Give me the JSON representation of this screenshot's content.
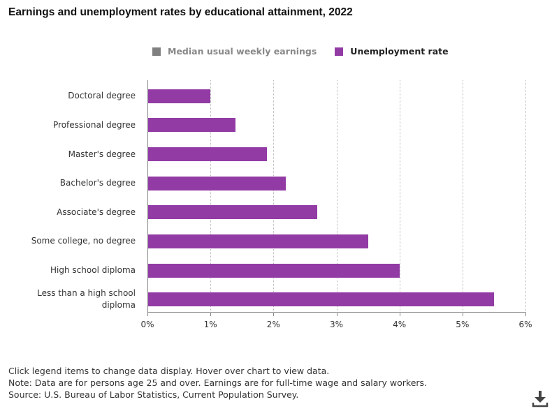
{
  "title": "Earnings and unemployment rates by educational attainment, 2022",
  "legend": [
    {
      "label": "Median usual weekly earnings",
      "color": "#808080",
      "active": false
    },
    {
      "label": "Unemployment rate",
      "color": "#923BA5",
      "active": true
    }
  ],
  "x_ticks": [
    "0%",
    "1%",
    "2%",
    "3%",
    "4%",
    "5%",
    "6%"
  ],
  "categories": [
    "Doctoral degree",
    "Professional degree",
    "Master's degree",
    "Bachelor's degree",
    "Associate's degree",
    "Some college, no degree",
    "High school diploma",
    "Less than a high school diploma"
  ],
  "notes": {
    "line1": "Click legend items to change data display. Hover over chart to view data.",
    "line2": "Note: Data are for persons age 25 and over. Earnings are for full-time wage and salary workers.",
    "line3": "Source: U.S. Bureau of Labor Statistics, Current Population Survey."
  },
  "download_icon": "download-icon",
  "chart_data": {
    "type": "bar",
    "orientation": "horizontal",
    "title": "Earnings and unemployment rates by educational attainment, 2022",
    "categories": [
      "Doctoral degree",
      "Professional degree",
      "Master's degree",
      "Bachelor's degree",
      "Associate's degree",
      "Some college, no degree",
      "High school diploma",
      "Less than a high school diploma"
    ],
    "series": [
      {
        "name": "Unemployment rate",
        "values": [
          1.0,
          1.4,
          1.9,
          2.2,
          2.7,
          3.5,
          4.0,
          5.5
        ],
        "unit": "%",
        "color": "#923BA5"
      }
    ],
    "legend": [
      "Median usual weekly earnings",
      "Unemployment rate"
    ],
    "xlabel": "",
    "ylabel": "",
    "xlim": [
      0,
      6
    ],
    "x_tick_labels": [
      "0%",
      "1%",
      "2%",
      "3%",
      "4%",
      "5%",
      "6%"
    ],
    "grid": "vertical dotted",
    "legend_position": "top"
  }
}
